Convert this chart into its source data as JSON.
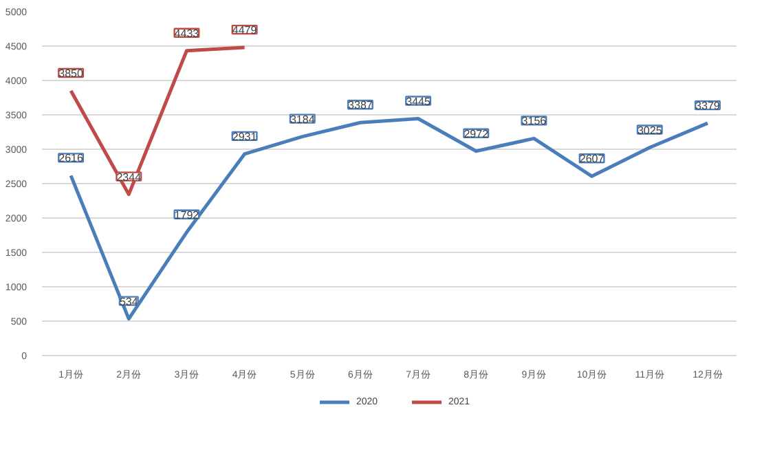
{
  "chart_data": {
    "type": "line",
    "categories": [
      "1月份",
      "2月份",
      "3月份",
      "4月份",
      "5月份",
      "6月份",
      "7月份",
      "8月份",
      "9月份",
      "10月份",
      "11月份",
      "12月份"
    ],
    "series": [
      {
        "name": "2020",
        "color": "#4a7ebb",
        "values": [
          2616,
          534,
          1792,
          2931,
          3184,
          3387,
          3445,
          2972,
          3156,
          2607,
          3025,
          3379
        ]
      },
      {
        "name": "2021",
        "color": "#be4b48",
        "values": [
          3850,
          2344,
          4433,
          4479,
          null,
          null,
          null,
          null,
          null,
          null,
          null,
          null
        ]
      }
    ],
    "ylim": [
      0,
      5000
    ],
    "yticks": [
      0,
      500,
      1000,
      1500,
      2000,
      2500,
      3000,
      3500,
      4000,
      4500,
      5000
    ],
    "grid": "y",
    "legend": "bottom",
    "data_labels": true,
    "marker": "none",
    "line_style": "solid"
  }
}
